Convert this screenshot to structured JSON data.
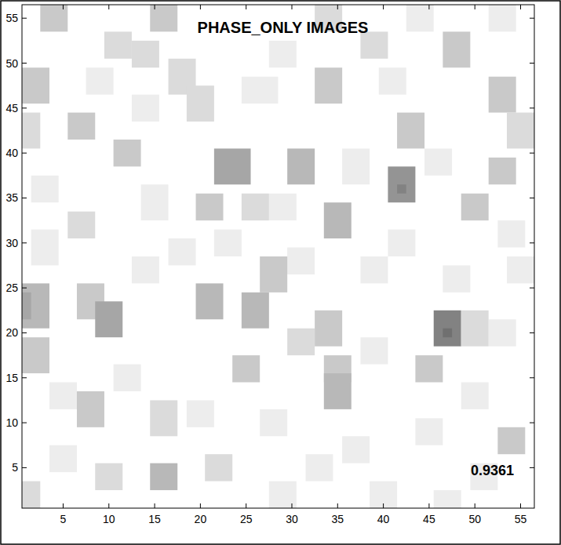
{
  "chart_data": {
    "type": "heatmap",
    "title": "PHASE_ONLY IMAGES",
    "annotation": "0.9361",
    "xlim": [
      0.5,
      56.5
    ],
    "ylim": [
      0.5,
      56.5
    ],
    "xticks": [
      5,
      10,
      15,
      20,
      25,
      30,
      35,
      40,
      45,
      50,
      55
    ],
    "yticks": [
      5,
      10,
      15,
      20,
      25,
      30,
      35,
      40,
      45,
      50,
      55
    ],
    "color_range": [
      0,
      10
    ],
    "cells": [
      {
        "x": [
          8,
          10
        ],
        "y": [
          47,
          49
        ],
        "value": 1
      },
      {
        "x": [
          25,
          28
        ],
        "y": [
          46,
          48
        ],
        "value": 1
      },
      {
        "x": [
          28,
          30
        ],
        "y": [
          50,
          52
        ],
        "value": 1
      },
      {
        "x": [
          40,
          42
        ],
        "y": [
          47,
          49
        ],
        "value": 1
      },
      {
        "x": [
          45,
          47
        ],
        "y": [
          38,
          40
        ],
        "value": 1
      },
      {
        "x": [
          14,
          16
        ],
        "y": [
          33,
          36
        ],
        "value": 1
      },
      {
        "x": [
          2,
          4
        ],
        "y": [
          28,
          31
        ],
        "value": 1
      },
      {
        "x": [
          17,
          19
        ],
        "y": [
          28,
          30
        ],
        "value": 1
      },
      {
        "x": [
          30,
          32
        ],
        "y": [
          27,
          29
        ],
        "value": 1
      },
      {
        "x": [
          38,
          40
        ],
        "y": [
          26,
          28
        ],
        "value": 1
      },
      {
        "x": [
          47,
          49
        ],
        "y": [
          25,
          27
        ],
        "value": 1
      },
      {
        "x": [
          4,
          6
        ],
        "y": [
          12,
          14
        ],
        "value": 1
      },
      {
        "x": [
          11,
          13
        ],
        "y": [
          14,
          16
        ],
        "value": 1
      },
      {
        "x": [
          19,
          21
        ],
        "y": [
          10,
          12
        ],
        "value": 1
      },
      {
        "x": [
          27,
          29
        ],
        "y": [
          9,
          11
        ],
        "value": 1
      },
      {
        "x": [
          36,
          38
        ],
        "y": [
          6,
          8
        ],
        "value": 1
      },
      {
        "x": [
          49,
          51
        ],
        "y": [
          12,
          14
        ],
        "value": 1
      },
      {
        "x": [
          22,
          24
        ],
        "y": [
          29,
          31
        ],
        "value": 1
      },
      {
        "x": [
          41,
          43
        ],
        "y": [
          29,
          31
        ],
        "value": 1
      },
      {
        "x": [
          54,
          56
        ],
        "y": [
          26,
          28
        ],
        "value": 1
      },
      {
        "x": [
          13,
          15
        ],
        "y": [
          44,
          46
        ],
        "value": 1
      },
      {
        "x": [
          2,
          4
        ],
        "y": [
          35,
          37
        ],
        "value": 1
      },
      {
        "x": [
          28,
          30
        ],
        "y": [
          33,
          35
        ],
        "value": 1
      },
      {
        "x": [
          50,
          52
        ],
        "y": [
          3,
          5
        ],
        "value": 1
      },
      {
        "x": [
          32,
          34
        ],
        "y": [
          4,
          6
        ],
        "value": 1
      },
      {
        "x": [
          13,
          15
        ],
        "y": [
          26,
          28
        ],
        "value": 1
      },
      {
        "x": [
          38,
          40
        ],
        "y": [
          17,
          19
        ],
        "value": 1
      },
      {
        "x": [
          52,
          54
        ],
        "y": [
          19,
          21
        ],
        "value": 1
      },
      {
        "x": [
          53,
          55
        ],
        "y": [
          30,
          32
        ],
        "value": 1
      },
      {
        "x": [
          44,
          46
        ],
        "y": [
          8,
          10
        ],
        "value": 1
      },
      {
        "x": [
          46,
          48
        ],
        "y": [
          1,
          2
        ],
        "value": 1
      },
      {
        "x": [
          39,
          41
        ],
        "y": [
          1,
          3
        ],
        "value": 1
      },
      {
        "x": [
          28,
          30
        ],
        "y": [
          1,
          3
        ],
        "value": 1
      },
      {
        "x": [
          4,
          6
        ],
        "y": [
          5,
          7
        ],
        "value": 1
      },
      {
        "x": [
          36,
          38
        ],
        "y": [
          37,
          40
        ],
        "value": 1
      },
      {
        "x": [
          43,
          45
        ],
        "y": [
          54,
          56
        ],
        "value": 1
      },
      {
        "x": [
          52,
          54
        ],
        "y": [
          54,
          56
        ],
        "value": 1
      },
      {
        "x": [
          3,
          5
        ],
        "y": [
          54,
          56
        ],
        "value": 3
      },
      {
        "x": [
          15,
          17
        ],
        "y": [
          54,
          56
        ],
        "value": 3
      },
      {
        "x": [
          33,
          35
        ],
        "y": [
          54,
          56
        ],
        "value": 2
      },
      {
        "x": [
          10,
          12
        ],
        "y": [
          51,
          53
        ],
        "value": 2
      },
      {
        "x": [
          38,
          40
        ],
        "y": [
          51,
          53
        ],
        "value": 2
      },
      {
        "x": [
          47,
          49
        ],
        "y": [
          50,
          53
        ],
        "value": 3
      },
      {
        "x": [
          13,
          15
        ],
        "y": [
          50,
          52
        ],
        "value": 2
      },
      {
        "x": [
          1,
          3
        ],
        "y": [
          46,
          49
        ],
        "value": 3
      },
      {
        "x": [
          17,
          19
        ],
        "y": [
          47,
          50
        ],
        "value": 2
      },
      {
        "x": [
          33,
          35
        ],
        "y": [
          46,
          49
        ],
        "value": 3
      },
      {
        "x": [
          52,
          54
        ],
        "y": [
          45,
          48
        ],
        "value": 3
      },
      {
        "x": [
          19,
          21
        ],
        "y": [
          44,
          47
        ],
        "value": 2
      },
      {
        "x": [
          1,
          2
        ],
        "y": [
          41,
          44
        ],
        "value": 2
      },
      {
        "x": [
          6,
          8
        ],
        "y": [
          42,
          44
        ],
        "value": 3
      },
      {
        "x": [
          11,
          13
        ],
        "y": [
          39,
          41
        ],
        "value": 3
      },
      {
        "x": [
          54,
          56
        ],
        "y": [
          41,
          44
        ],
        "value": 2
      },
      {
        "x": [
          42,
          44
        ],
        "y": [
          41,
          44
        ],
        "value": 3
      },
      {
        "x": [
          22,
          25
        ],
        "y": [
          37,
          40
        ],
        "value": 5
      },
      {
        "x": [
          30,
          32
        ],
        "y": [
          37,
          40
        ],
        "value": 4
      },
      {
        "x": [
          41,
          43
        ],
        "y": [
          35,
          38
        ],
        "value": 6
      },
      {
        "x": [
          42,
          42
        ],
        "y": [
          36,
          36
        ],
        "value": 7
      },
      {
        "x": [
          52,
          54
        ],
        "y": [
          37,
          39
        ],
        "value": 3
      },
      {
        "x": [
          20,
          22
        ],
        "y": [
          33,
          35
        ],
        "value": 3
      },
      {
        "x": [
          25,
          27
        ],
        "y": [
          33,
          35
        ],
        "value": 2
      },
      {
        "x": [
          34,
          36
        ],
        "y": [
          31,
          34
        ],
        "value": 4
      },
      {
        "x": [
          49,
          51
        ],
        "y": [
          33,
          35
        ],
        "value": 3
      },
      {
        "x": [
          6,
          8
        ],
        "y": [
          31,
          33
        ],
        "value": 2
      },
      {
        "x": [
          1,
          3
        ],
        "y": [
          21,
          25
        ],
        "value": 4
      },
      {
        "x": [
          1,
          1
        ],
        "y": [
          22,
          24
        ],
        "value": 5
      },
      {
        "x": [
          7,
          9
        ],
        "y": [
          22,
          25
        ],
        "value": 3
      },
      {
        "x": [
          9,
          11
        ],
        "y": [
          20,
          23
        ],
        "value": 5
      },
      {
        "x": [
          20,
          22
        ],
        "y": [
          22,
          25
        ],
        "value": 4
      },
      {
        "x": [
          25,
          27
        ],
        "y": [
          21,
          24
        ],
        "value": 4
      },
      {
        "x": [
          27,
          29
        ],
        "y": [
          25,
          28
        ],
        "value": 3
      },
      {
        "x": [
          30,
          32
        ],
        "y": [
          18,
          20
        ],
        "value": 2
      },
      {
        "x": [
          33,
          35
        ],
        "y": [
          19,
          22
        ],
        "value": 3
      },
      {
        "x": [
          46,
          48
        ],
        "y": [
          19,
          22
        ],
        "value": 7
      },
      {
        "x": [
          47,
          47
        ],
        "y": [
          20,
          20
        ],
        "value": 8
      },
      {
        "x": [
          49,
          51
        ],
        "y": [
          19,
          22
        ],
        "value": 2
      },
      {
        "x": [
          1,
          3
        ],
        "y": [
          16,
          19
        ],
        "value": 3
      },
      {
        "x": [
          24,
          26
        ],
        "y": [
          15,
          17
        ],
        "value": 3
      },
      {
        "x": [
          34,
          36
        ],
        "y": [
          15,
          17
        ],
        "value": 3
      },
      {
        "x": [
          34,
          36
        ],
        "y": [
          12,
          15
        ],
        "value": 4
      },
      {
        "x": [
          44,
          46
        ],
        "y": [
          15,
          17
        ],
        "value": 3
      },
      {
        "x": [
          7,
          9
        ],
        "y": [
          10,
          13
        ],
        "value": 3
      },
      {
        "x": [
          15,
          17
        ],
        "y": [
          9,
          12
        ],
        "value": 2
      },
      {
        "x": [
          53,
          55
        ],
        "y": [
          7,
          9
        ],
        "value": 3
      },
      {
        "x": [
          15,
          17
        ],
        "y": [
          3,
          5
        ],
        "value": 4
      },
      {
        "x": [
          21,
          23
        ],
        "y": [
          4,
          6
        ],
        "value": 2
      },
      {
        "x": [
          9,
          11
        ],
        "y": [
          3,
          5
        ],
        "value": 2
      },
      {
        "x": [
          1,
          2
        ],
        "y": [
          1,
          3
        ],
        "value": 2
      }
    ]
  }
}
